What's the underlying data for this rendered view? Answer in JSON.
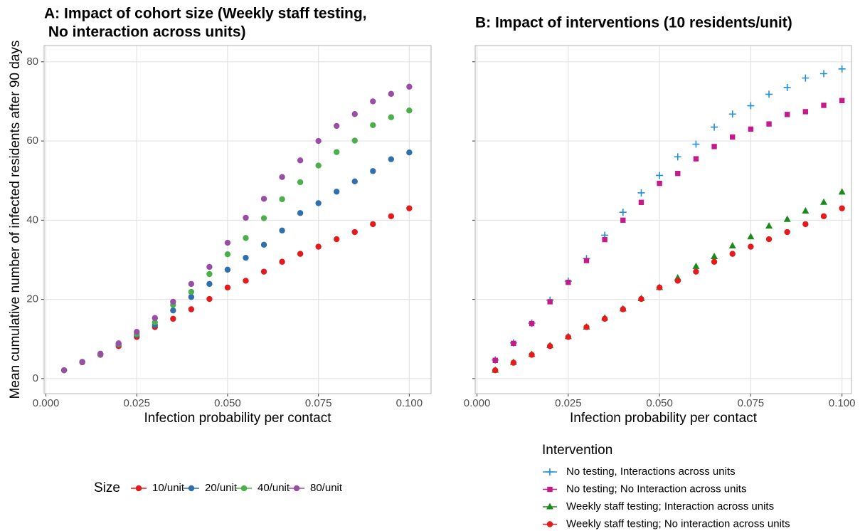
{
  "chart_data": [
    {
      "type": "scatter",
      "title": [
        "A: Impact of cohort size (Weekly staff testing,",
        " No interaction across units)"
      ],
      "x_label": "Infection probability per contact",
      "y_label": "Mean cumulative number of infected residents after 90 days",
      "x": [
        0.005,
        0.01,
        0.015,
        0.02,
        0.025,
        0.03,
        0.035,
        0.04,
        0.045,
        0.05,
        0.055,
        0.06,
        0.065,
        0.07,
        0.075,
        0.08,
        0.085,
        0.09,
        0.095,
        0.1
      ],
      "xlim": [
        -0.0005,
        0.106
      ],
      "ylim": [
        -3.8,
        84.1
      ],
      "xticks": [
        {
          "value": 0,
          "label": "0.000"
        },
        {
          "value": 0.025,
          "label": "0.025"
        },
        {
          "value": 0.05,
          "label": "0.050"
        },
        {
          "value": 0.075,
          "label": "0.075"
        },
        {
          "value": 0.1,
          "label": "0.100"
        }
      ],
      "yticks": [
        0,
        20,
        40,
        60,
        80
      ],
      "ytick_labels": true,
      "grid": true,
      "legend": "bottom",
      "legend_title": "Size",
      "series": [
        {
          "name": "10/unit",
          "color": "#e41a1c",
          "marker": "circle",
          "values": [
            2.1,
            4.1,
            6,
            8.2,
            10.5,
            13,
            15.1,
            17.5,
            20.1,
            23,
            24.7,
            27,
            29.5,
            31.5,
            33.3,
            35.2,
            37,
            39,
            41,
            43
          ]
        },
        {
          "name": "20/unit",
          "color": "#2f6fb0",
          "marker": "circle",
          "values": [
            2.1,
            4.2,
            6.1,
            8.6,
            11,
            13.5,
            17.2,
            20.6,
            23.9,
            27.5,
            30.5,
            33.8,
            37.4,
            41.8,
            44.3,
            47.2,
            49.8,
            52.4,
            55.4,
            57.1
          ]
        },
        {
          "name": "40/unit",
          "color": "#4daf4a",
          "marker": "circle",
          "values": [
            2.1,
            4.2,
            6.2,
            8.7,
            11.3,
            14.2,
            18.6,
            21.9,
            26.4,
            31.4,
            35.5,
            40.5,
            45.3,
            49.6,
            53.8,
            57.2,
            60.1,
            64,
            66,
            67.7
          ]
        },
        {
          "name": "80/unit",
          "color": "#984ea3",
          "marker": "circle",
          "values": [
            2.1,
            4.2,
            6.3,
            8.9,
            11.8,
            15.3,
            19.4,
            23.9,
            28.2,
            34.3,
            40.6,
            45.4,
            50.9,
            55.1,
            60,
            63.8,
            66.8,
            70,
            71.9,
            73.7
          ]
        }
      ]
    },
    {
      "type": "scatter",
      "title": [
        "B: Impact of interventions (10 residents/unit)"
      ],
      "x_label": "Infection probability per contact",
      "x": [
        0.005,
        0.01,
        0.015,
        0.02,
        0.025,
        0.03,
        0.035,
        0.04,
        0.045,
        0.05,
        0.055,
        0.06,
        0.065,
        0.07,
        0.075,
        0.08,
        0.085,
        0.09,
        0.095,
        0.1
      ],
      "xlim": [
        -0.0005,
        0.1026
      ],
      "ylim": [
        -3.8,
        84.1
      ],
      "xticks": [
        {
          "value": 0,
          "label": "0.000"
        },
        {
          "value": 0.025,
          "label": "0.025"
        },
        {
          "value": 0.05,
          "label": "0.050"
        },
        {
          "value": 0.075,
          "label": "0.075"
        },
        {
          "value": 0.1,
          "label": "0.100"
        }
      ],
      "yticks": [
        0,
        20,
        40,
        60,
        80
      ],
      "ytick_labels": false,
      "grid": true,
      "legend": "bottom-right",
      "legend_title": "Intervention",
      "series": [
        {
          "name": "No testing, Interactions across units",
          "color": "#1f8fd6",
          "marker": "plus",
          "values": [
            4.7,
            9,
            14,
            19.8,
            24.6,
            30.3,
            36.2,
            42,
            46.9,
            51.3,
            56,
            59.2,
            63.5,
            66.8,
            68.9,
            71.8,
            73.5,
            75.9,
            77,
            78.2
          ]
        },
        {
          "name": "No testing; No Interaction across units",
          "color": "#c51b8a",
          "marker": "square",
          "values": [
            4.6,
            8.9,
            13.9,
            19.4,
            24.3,
            29.8,
            35.1,
            40,
            44.5,
            49.3,
            51.8,
            55.5,
            58.6,
            61,
            63,
            64.3,
            66.7,
            67.4,
            69,
            70.2
          ]
        },
        {
          "name": "Weekly staff testing; Interaction across units",
          "color": "#1a8a1a",
          "marker": "triangle",
          "values": [
            2.1,
            4.1,
            6.1,
            8.3,
            10.6,
            13,
            15.3,
            17.6,
            20.2,
            23,
            25.4,
            28.3,
            30.8,
            33.5,
            35.8,
            38.5,
            40.2,
            42.3,
            44.5,
            47.1
          ]
        },
        {
          "name": "Weekly staff testing; No interaction across units",
          "color": "#e41a1c",
          "marker": "circle",
          "values": [
            2.1,
            4,
            6,
            8.2,
            10.5,
            13,
            15.1,
            17.5,
            20.1,
            23,
            24.7,
            27,
            29.5,
            31.5,
            33.3,
            35.2,
            37,
            39,
            41,
            43
          ]
        }
      ]
    }
  ]
}
